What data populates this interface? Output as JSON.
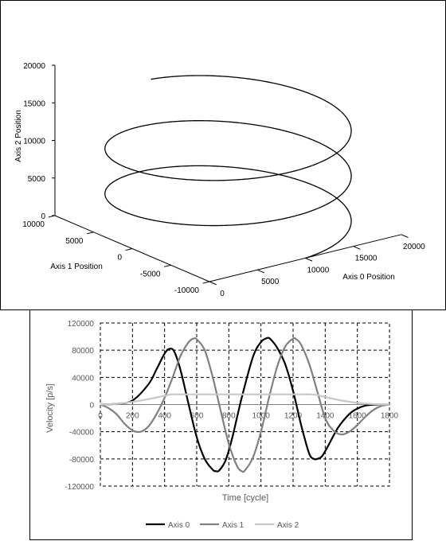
{
  "chart_data": [
    {
      "type": "line3d",
      "title": "",
      "axes": {
        "x": {
          "label": "Axis 0 Position",
          "ticks": [
            "0",
            "5000",
            "10000",
            "15000",
            "20000"
          ],
          "range": [
            0,
            20000
          ]
        },
        "y": {
          "label": "Axis 1 Position",
          "ticks": [
            "-10000",
            "-5000",
            "0",
            "5000",
            "10000"
          ],
          "range": [
            -10000,
            10000
          ]
        },
        "z": {
          "label": "Axis 2 Position",
          "ticks": [
            "0",
            "5000",
            "10000",
            "15000",
            "20000"
          ],
          "range": [
            0,
            20000
          ]
        }
      },
      "series": [
        {
          "description": "helix",
          "center_x": 10000,
          "center_y": 0,
          "radius": 10000,
          "z_start": 0,
          "z_end": 15000,
          "turns": 2.5,
          "color": "#000000"
        }
      ],
      "grid": false,
      "legend": "none"
    },
    {
      "type": "line",
      "title": "",
      "xlabel": "Time [cycle]",
      "ylabel": "Velocity [p/s]",
      "xlim": [
        0,
        1800
      ],
      "ylim": [
        -120000,
        120000
      ],
      "xticks": [
        "0",
        "200",
        "400",
        "600",
        "800",
        "1000",
        "1200",
        "1400",
        "1600",
        "1800"
      ],
      "yticks": [
        "120000",
        "80000",
        "40000",
        "0",
        "-40000",
        "-80000",
        "-120000"
      ],
      "grid": true,
      "legend": "bottom",
      "series": [
        {
          "name": "Axis 0",
          "color": "#000000",
          "x": [
            0,
            100,
            200,
            300,
            350,
            400,
            430,
            460,
            500,
            550,
            600,
            650,
            700,
            720,
            740,
            780,
            820,
            880,
            950,
            1000,
            1040,
            1060,
            1100,
            1150,
            1200,
            1250,
            1300,
            1330,
            1350,
            1380,
            1420,
            1480,
            1550,
            1600,
            1650,
            1700,
            1750,
            1780,
            1800
          ],
          "y": [
            0,
            1000,
            6000,
            30000,
            52000,
            75000,
            82000,
            78000,
            50000,
            0,
            -48000,
            -80000,
            -96000,
            -98000,
            -97000,
            -82000,
            -50000,
            10000,
            70000,
            92000,
            98000,
            96000,
            84000,
            60000,
            20000,
            -30000,
            -72000,
            -80000,
            -80000,
            -76000,
            -60000,
            -34000,
            -14000,
            -6000,
            -1500,
            -300,
            0,
            0,
            0
          ]
        },
        {
          "name": "Axis 1",
          "color": "#808080",
          "x": [
            0,
            50,
            100,
            150,
            200,
            250,
            300,
            350,
            400,
            450,
            500,
            550,
            580,
            600,
            650,
            700,
            750,
            800,
            850,
            880,
            900,
            950,
            1000,
            1050,
            1100,
            1150,
            1200,
            1220,
            1250,
            1300,
            1350,
            1400,
            1450,
            1500,
            1550,
            1600,
            1650,
            1700,
            1750,
            1800
          ],
          "y": [
            0,
            -5000,
            -14000,
            -28000,
            -38000,
            -40000,
            -32000,
            -14000,
            10000,
            40000,
            72000,
            92000,
            97000,
            96000,
            80000,
            40000,
            -10000,
            -58000,
            -90000,
            -98000,
            -97000,
            -78000,
            -40000,
            10000,
            55000,
            85000,
            97000,
            96000,
            88000,
            60000,
            20000,
            -20000,
            -38000,
            -44000,
            -40000,
            -30000,
            -18000,
            -8000,
            -2000,
            0
          ]
        },
        {
          "name": "Axis 2",
          "color": "#c8c8c8",
          "x": [
            0,
            100,
            200,
            300,
            400,
            450,
            500,
            600,
            800,
            1000,
            1200,
            1300,
            1350,
            1400,
            1500,
            1600,
            1700,
            1800
          ],
          "y": [
            0,
            1000,
            4000,
            8000,
            13000,
            15000,
            15000,
            15000,
            15000,
            15000,
            15000,
            15000,
            14000,
            11000,
            6000,
            2500,
            600,
            0
          ]
        }
      ]
    }
  ]
}
